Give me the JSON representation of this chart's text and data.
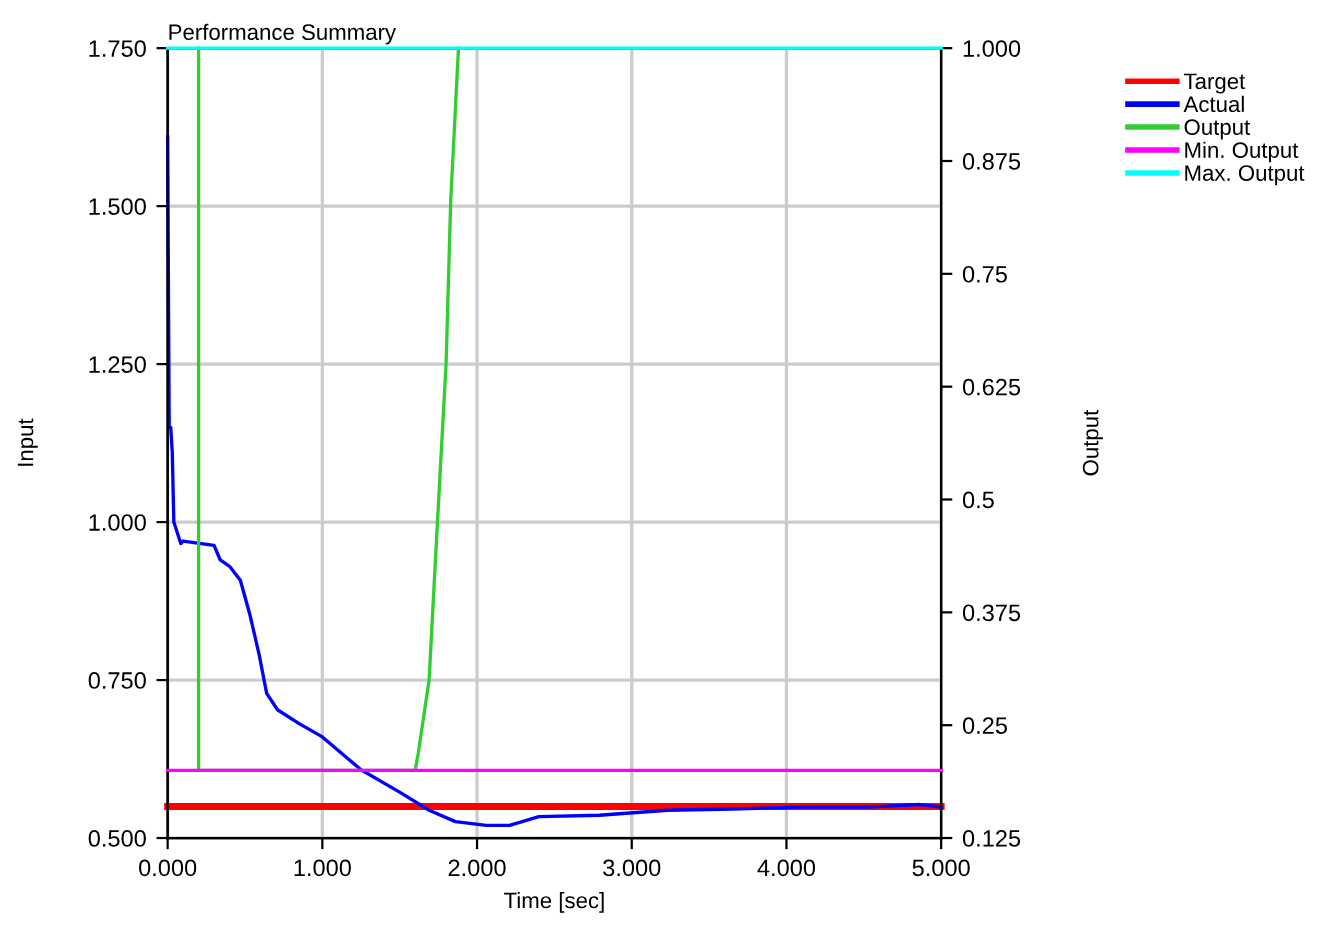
{
  "chart_data": {
    "type": "line",
    "title": "Performance Summary",
    "xlabel": "Time [sec]",
    "ylabel": "Input",
    "y2label": "Output",
    "xlim": [
      0,
      5
    ],
    "xticks": [
      {
        "value": 0,
        "label": "0.000"
      },
      {
        "value": 1,
        "label": "1.000"
      },
      {
        "value": 2,
        "label": "2.000"
      },
      {
        "value": 3,
        "label": "3.000"
      },
      {
        "value": 4,
        "label": "4.000"
      },
      {
        "value": 5,
        "label": "5.000"
      }
    ],
    "ylim": [
      0.5,
      1.75
    ],
    "yticks": [
      {
        "value": 0.5,
        "label": "0.500"
      },
      {
        "value": 0.75,
        "label": "0.750"
      },
      {
        "value": 1.0,
        "label": "1.000"
      },
      {
        "value": 1.25,
        "label": "1.250"
      },
      {
        "value": 1.5,
        "label": "1.500"
      },
      {
        "value": 1.75,
        "label": "1.750"
      }
    ],
    "y2lim": [
      0.125,
      1.0
    ],
    "y2ticks": [
      0.125,
      0.25,
      0.375,
      0.5,
      0.625,
      0.75,
      0.875,
      {
        "value": 1.0,
        "label": "1.000"
      }
    ],
    "grid": true,
    "legend": "top right",
    "marker": "none",
    "line_style": "solid",
    "series": [
      {
        "name": "Target",
        "color": "#ff0000",
        "x": [
          0,
          5
        ],
        "values": [
          0.55,
          0.55
        ]
      },
      {
        "name": "Actual",
        "color": "#0000ff",
        "x": [
          0,
          0.01,
          0.02,
          0.03,
          0.04,
          0.085,
          0.1,
          0.3,
          0.34,
          0.4,
          0.47,
          0.53,
          0.59,
          0.64,
          0.71,
          0.85,
          1.0,
          1.25,
          1.51,
          1.69,
          1.86,
          2.06,
          2.21,
          2.4,
          2.79,
          3.23,
          3.65,
          4.08,
          4.52,
          4.86,
          5.0
        ],
        "values": [
          1.61,
          1.15,
          1.15,
          1.11,
          1.0,
          0.966,
          0.97,
          0.963,
          0.94,
          0.93,
          0.908,
          0.855,
          0.792,
          0.729,
          0.703,
          0.681,
          0.66,
          0.608,
          0.571,
          0.544,
          0.526,
          0.52,
          0.52,
          0.534,
          0.536,
          0.544,
          0.546,
          0.549,
          0.549,
          0.553,
          0.549
        ]
      },
      {
        "name": "Output",
        "color": "#33cc33",
        "axis": "y2",
        "x": [
          0.2,
          0.2,
          1.6,
          1.62,
          1.69,
          1.74,
          1.8,
          1.83,
          1.88
        ],
        "values": [
          1.0,
          0.2,
          0.2,
          0.219,
          0.3,
          0.462,
          0.651,
          0.832,
          1.0
        ]
      },
      {
        "name": "Min. Output",
        "color": "#ff00ff",
        "axis": "y2",
        "x": [
          0,
          5
        ],
        "values": [
          0.2,
          0.2
        ]
      },
      {
        "name": "Max. Output",
        "color": "#00ffff",
        "axis": "y2",
        "x": [
          0,
          5
        ],
        "values": [
          1.0,
          1.0
        ]
      }
    ]
  }
}
